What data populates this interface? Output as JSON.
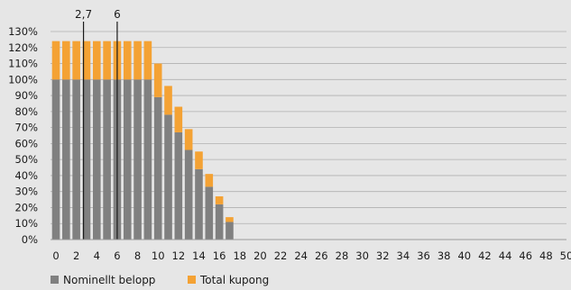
{
  "chart_data": {
    "type": "bar",
    "stacked": true,
    "title": "",
    "xlabel": "",
    "ylabel": "",
    "x": [
      0,
      1,
      2,
      3,
      4,
      5,
      6,
      7,
      8,
      9,
      10,
      11,
      12,
      13,
      14,
      15,
      16,
      17,
      18,
      19,
      20,
      21,
      22,
      23,
      24,
      25,
      26,
      27,
      28,
      29,
      30,
      31,
      32,
      33,
      34,
      35,
      36,
      37,
      38,
      39,
      40,
      41,
      42,
      43,
      44,
      45,
      46,
      47,
      48,
      49,
      50
    ],
    "x_tick_labels": [
      "0",
      "2",
      "4",
      "6",
      "8",
      "10",
      "12",
      "14",
      "16",
      "18",
      "20",
      "22",
      "24",
      "26",
      "28",
      "30",
      "32",
      "34",
      "36",
      "38",
      "40",
      "42",
      "44",
      "46",
      "48",
      "50"
    ],
    "ylim": [
      0,
      130
    ],
    "y_tick_labels": [
      "0%",
      "10%",
      "20%",
      "30%",
      "40%",
      "50%",
      "60%",
      "70%",
      "80%",
      "90%",
      "100%",
      "110%",
      "120%",
      "130%"
    ],
    "grid": true,
    "legend_position": "bottom-left",
    "series": [
      {
        "name": "Nominellt belopp",
        "color": "#808080",
        "values": [
          100,
          100,
          100,
          100,
          100,
          100,
          100,
          100,
          100,
          100,
          89,
          78,
          67,
          56,
          44,
          33,
          22,
          11,
          0,
          0,
          0,
          0,
          0,
          0,
          0,
          0,
          0,
          0,
          0,
          0,
          0,
          0,
          0,
          0,
          0,
          0,
          0,
          0,
          0,
          0,
          0,
          0,
          0,
          0,
          0,
          0,
          0,
          0,
          0,
          0,
          0
        ]
      },
      {
        "name": "Total kupong",
        "color": "#f4a234",
        "values": [
          24,
          24,
          24,
          24,
          24,
          24,
          24,
          24,
          24,
          24,
          21,
          18,
          16,
          13,
          11,
          8,
          5,
          3,
          0,
          0,
          0,
          0,
          0,
          0,
          0,
          0,
          0,
          0,
          0,
          0,
          0,
          0,
          0,
          0,
          0,
          0,
          0,
          0,
          0,
          0,
          0,
          0,
          0,
          0,
          0,
          0,
          0,
          0,
          0,
          0,
          0
        ]
      }
    ],
    "annotations": [
      {
        "label": "2,7",
        "x": 2.7
      },
      {
        "label": "6",
        "x": 6
      }
    ]
  }
}
